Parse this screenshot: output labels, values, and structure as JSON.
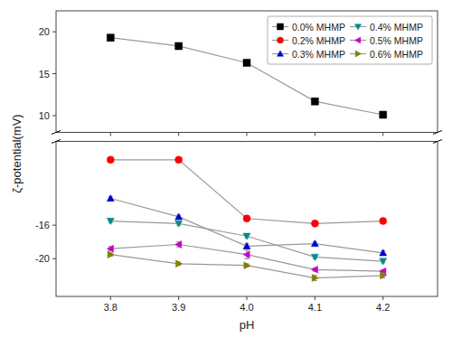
{
  "chart_data": [
    {
      "type": "line",
      "y_label": "ζ-potential(mV)",
      "x": [
        3.8,
        3.9,
        4.0,
        4.1,
        4.2
      ],
      "xlim": [
        3.72,
        4.28
      ],
      "xticks": [
        3.8,
        3.9,
        4.0,
        4.1,
        4.2
      ],
      "ylim": [
        8.0,
        22.5
      ],
      "yticks": [
        10,
        15,
        20
      ],
      "tick_labels": "y",
      "legend": "upper right",
      "series": [
        {
          "name": "0.0% MHMP",
          "color": "#000000",
          "marker": "square",
          "values": [
            19.3,
            18.3,
            16.3,
            11.7,
            10.1
          ],
          "errors": [
            0.15,
            0.15,
            0.15,
            0.15,
            0.15
          ]
        }
      ]
    },
    {
      "type": "line",
      "x_label": "pH",
      "x": [
        3.8,
        3.9,
        4.0,
        4.1,
        4.2
      ],
      "xlim": [
        3.72,
        4.28
      ],
      "xticks": [
        3.8,
        3.9,
        {
          "value": 4.0,
          "label": "4.0"
        },
        4.1,
        4.2
      ],
      "ylim": [
        -24.5,
        -6.0
      ],
      "yticks": [
        -20,
        -16
      ],
      "series": [
        {
          "name": "0.2% MHMP",
          "color": "#FF0000",
          "marker": "circle",
          "values": [
            -8.2,
            -8.2,
            -15.2,
            -15.8,
            -15.5
          ],
          "errors": [
            0.2,
            0.2,
            0.3,
            0.2,
            0.2
          ]
        },
        {
          "name": "0.3% MHMP",
          "color": "#0000CC",
          "marker": "triangle-up",
          "values": [
            -12.8,
            -15.0,
            -18.5,
            -18.2,
            -19.3
          ],
          "errors": [
            0.2,
            0.2,
            0.3,
            0.2,
            0.25
          ]
        },
        {
          "name": "0.4% MHMP",
          "color": "#008B8B",
          "marker": "triangle-down",
          "values": [
            -15.5,
            -15.8,
            -17.3,
            -19.8,
            -20.3
          ],
          "errors": [
            0.2,
            0.2,
            0.2,
            0.2,
            0.2
          ]
        },
        {
          "name": "0.5% MHMP",
          "color": "#CC00CC",
          "marker": "triangle-left",
          "values": [
            -18.8,
            -18.3,
            -19.5,
            -21.3,
            -21.5
          ],
          "errors": [
            0.25,
            0.3,
            0.5,
            0.2,
            0.2
          ]
        },
        {
          "name": "0.6% MHMP",
          "color": "#808000",
          "marker": "triangle-right",
          "values": [
            -19.5,
            -20.6,
            -20.8,
            -22.3,
            -22.0
          ],
          "errors": [
            0.2,
            0.2,
            0.2,
            0.3,
            0.3
          ]
        }
      ]
    }
  ]
}
